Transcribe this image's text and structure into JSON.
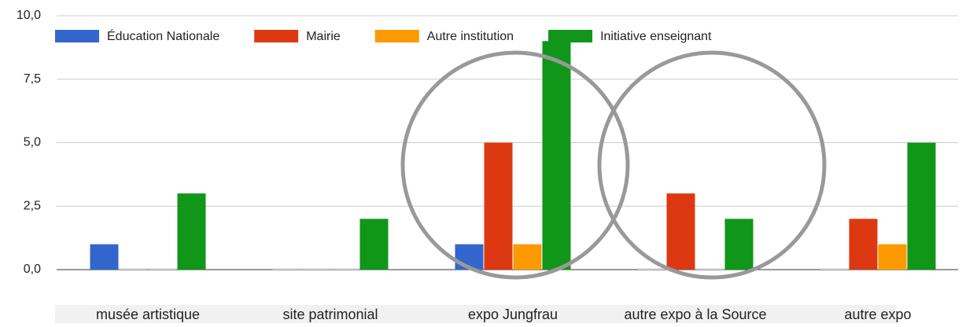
{
  "chart_data": {
    "type": "bar",
    "categories": [
      "musée artistique",
      "site patrimonial",
      "expo Jungfrau",
      "autre expo à la Source",
      "autre expo"
    ],
    "series": [
      {
        "name": "Éducation Nationale",
        "color": "#3366cc",
        "values": [
          1,
          0,
          1,
          0,
          0
        ]
      },
      {
        "name": "Mairie",
        "color": "#dc3912",
        "values": [
          0,
          0,
          5,
          3,
          2
        ]
      },
      {
        "name": "Autre institution",
        "color": "#ff9900",
        "values": [
          0,
          0,
          1,
          0,
          1
        ]
      },
      {
        "name": "Initiative enseignant",
        "color": "#109618",
        "values": [
          3,
          2,
          9,
          2,
          5
        ]
      }
    ],
    "ylim": [
      0,
      10
    ],
    "yticks": [
      {
        "value": 0,
        "label": "0,0"
      },
      {
        "value": 2.5,
        "label": "2,5"
      },
      {
        "value": 5,
        "label": "5,0"
      },
      {
        "value": 7.5,
        "label": "7,5"
      },
      {
        "value": 10,
        "label": "10,0"
      }
    ],
    "grid": true,
    "legend": "top"
  }
}
